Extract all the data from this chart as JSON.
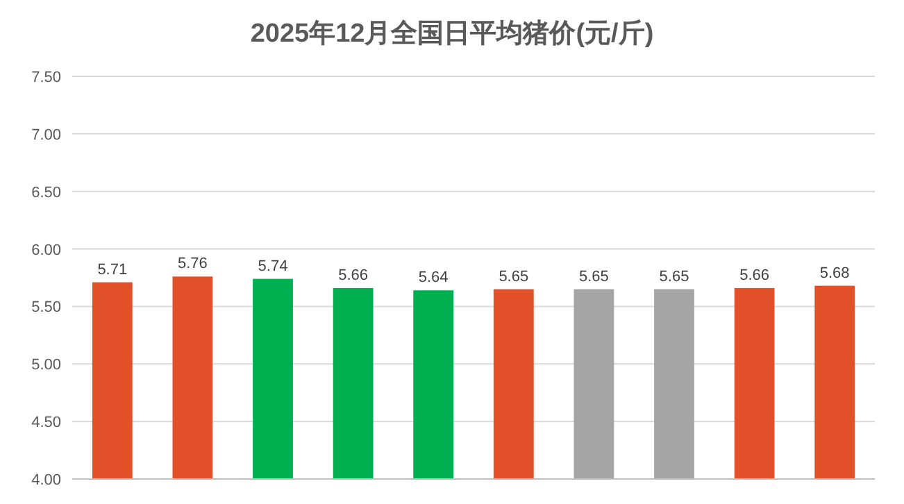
{
  "chart_data": {
    "type": "bar",
    "title": "2025年12月全国日平均猪价(元/斤)",
    "categories": [
      null,
      null,
      null,
      null,
      null,
      null,
      null,
      null,
      null,
      null
    ],
    "values": [
      5.71,
      5.76,
      5.74,
      5.66,
      5.64,
      5.65,
      5.65,
      5.65,
      5.66,
      5.68
    ],
    "colors": [
      "#e2512a",
      "#e2512a",
      "#00b050",
      "#00b050",
      "#00b050",
      "#e2512a",
      "#a5a5a5",
      "#a5a5a5",
      "#e2512a",
      "#e2512a"
    ],
    "ylim": [
      4,
      7.5
    ],
    "yticks": [
      {
        "value": 4,
        "label": "4.00"
      },
      {
        "value": 4.5,
        "label": "4.50"
      },
      {
        "value": 5,
        "label": "5.00"
      },
      {
        "value": 5.5,
        "label": "5.50"
      },
      {
        "value": 6,
        "label": "6.00"
      },
      {
        "value": 6.5,
        "label": "6.50"
      },
      {
        "value": 7,
        "label": "7.00"
      },
      {
        "value": 7.5,
        "label": "7.50"
      }
    ],
    "grid": "y",
    "data_labels": true
  }
}
